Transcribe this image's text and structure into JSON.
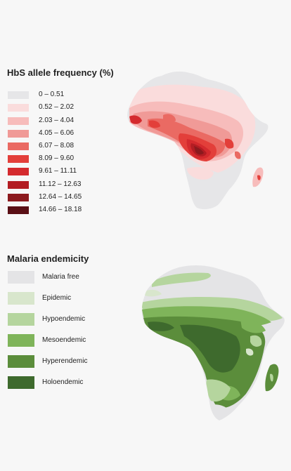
{
  "hbs_panel": {
    "title": "HbS allele frequency (%)",
    "legend": [
      {
        "label": "0 – 0.51",
        "color": "#e6e6e8"
      },
      {
        "label": "0.52 – 2.02",
        "color": "#fadcdc"
      },
      {
        "label": "2.03 – 4.04",
        "color": "#f7bcbb"
      },
      {
        "label": "4.05 – 6.06",
        "color": "#f09a97"
      },
      {
        "label": "6.07 – 8.08",
        "color": "#ea6a63"
      },
      {
        "label": "8.09 – 9.60",
        "color": "#e33f3a"
      },
      {
        "label": "9.61 – 11.11",
        "color": "#d42a2e"
      },
      {
        "label": "11.12 – 12.63",
        "color": "#b31d23"
      },
      {
        "label": "12.64 – 14.65",
        "color": "#8c1a1e"
      },
      {
        "label": "14.66 – 18.18",
        "color": "#5a0f15"
      }
    ]
  },
  "malaria_panel": {
    "title": "Malaria endemicity",
    "legend": [
      {
        "label": "Malaria free",
        "color": "#e4e4e6"
      },
      {
        "label": "Epidemic",
        "color": "#d8e6cc"
      },
      {
        "label": "Hypoendemic",
        "color": "#b5d59e"
      },
      {
        "label": "Mesoendemic",
        "color": "#7fb45a"
      },
      {
        "label": "Hyperendemic",
        "color": "#5b8d3b"
      },
      {
        "label": "Holoendemic",
        "color": "#3e6a2d"
      }
    ]
  }
}
